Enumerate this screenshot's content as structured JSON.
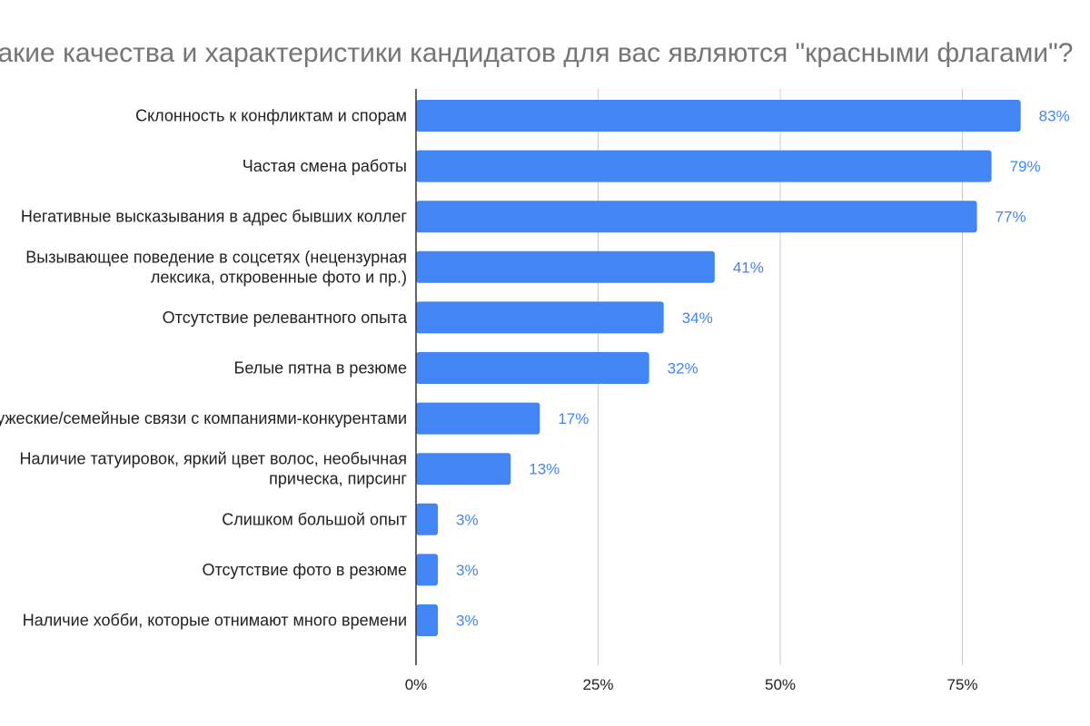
{
  "chart_data": {
    "type": "bar",
    "orientation": "horizontal",
    "title": "Какие качества и характеристики кандидатов для вас являются \"красными флагами\"?",
    "categories": [
      "Склонность к конфликтам и спорам",
      "Частая смена работы",
      "Негативные высказывания в адрес бывших коллег",
      "Вызывающее поведение в соцсетях (нецензурная лексика, откровенные фото и пр.)",
      "Отсутствие релевантного опыта",
      "Белые пятна в резюме",
      "Дружеские/семейные связи с компаниями-конкурентами",
      "Наличие татуировок, яркий цвет волос, необычная прическа, пирсинг",
      "Слишком большой опыт",
      "Отсутствие фото в резюме",
      "Наличие хобби, которые отнимают много времени"
    ],
    "category_lines": [
      [
        "Склонность к конфликтам и спорам"
      ],
      [
        "Частая смена работы"
      ],
      [
        "Негативные высказывания в адрес бывших коллег"
      ],
      [
        "Вызывающее поведение в соцсетях (нецензурная",
        "лексика, откровенные фото и пр.)"
      ],
      [
        "Отсутствие релевантного опыта"
      ],
      [
        "Белые пятна в резюме"
      ],
      [
        "Дружеские/семейные связи с компаниями-конкурентами"
      ],
      [
        "Наличие татуировок, яркий цвет волос, необычная",
        "прическа, пирсинг"
      ],
      [
        "Слишком большой опыт"
      ],
      [
        "Отсутствие фото в резюме"
      ],
      [
        "Наличие хобби, которые отнимают много времени"
      ]
    ],
    "values": [
      83,
      79,
      77,
      41,
      34,
      32,
      17,
      13,
      3,
      3,
      3
    ],
    "value_labels": [
      "83%",
      "79%",
      "77%",
      "41%",
      "34%",
      "32%",
      "17%",
      "13%",
      "3%",
      "3%",
      "3%"
    ],
    "xlim": [
      0,
      100
    ],
    "x_ticks": [
      0,
      25,
      50,
      75
    ],
    "x_tick_labels": [
      "0%",
      "25%",
      "50%",
      "75%"
    ],
    "grid": true,
    "colors": {
      "bar": "#4285f4",
      "value_label": "#4285f4",
      "grid": "#cccccc",
      "axis": "#333333",
      "title": "#757575"
    }
  }
}
